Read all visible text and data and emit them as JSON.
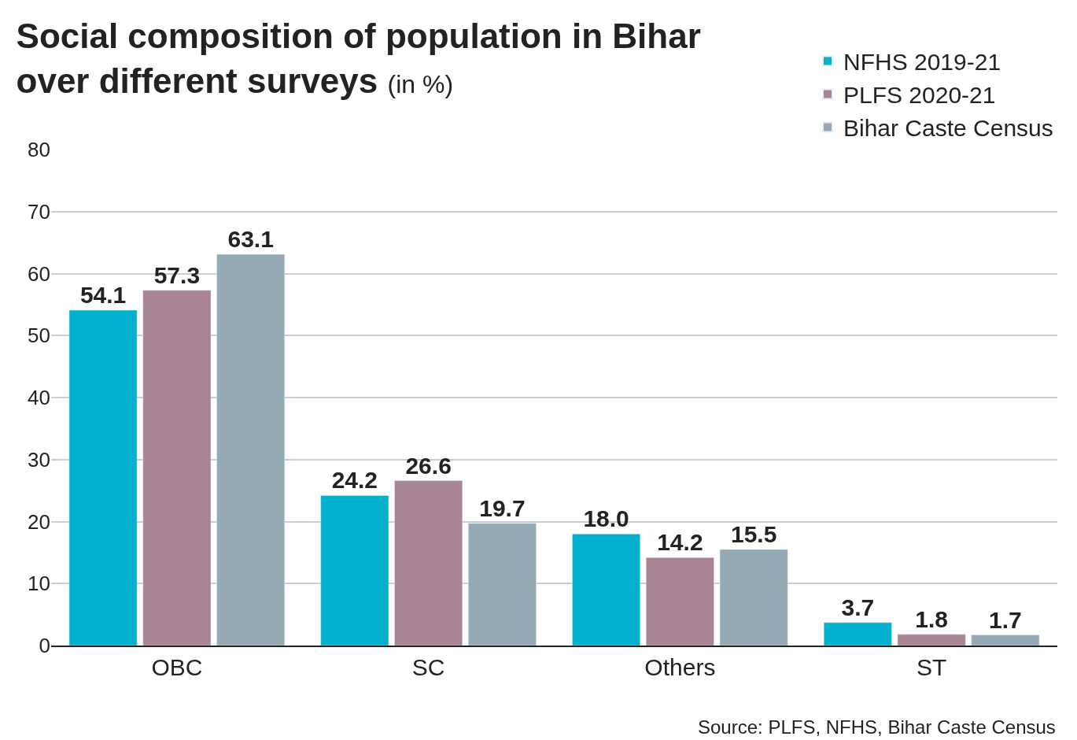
{
  "chart_data": {
    "type": "bar",
    "title": "Social composition of population in Bihar over different surveys",
    "subtitle": "(in %)",
    "categories": [
      "OBC",
      "SC",
      "Others",
      "ST"
    ],
    "series": [
      {
        "name": "NFHS 2019-21",
        "color": "#00b0cc",
        "values": [
          54.1,
          24.2,
          18.0,
          3.7
        ],
        "value_labels": [
          "54.1",
          "24.2",
          "18.0",
          "3.7"
        ]
      },
      {
        "name": "PLFS 2020-21",
        "color": "#a88494",
        "values": [
          57.3,
          26.6,
          14.2,
          1.8
        ],
        "value_labels": [
          "57.3",
          "26.6",
          "14.2",
          "1.8"
        ]
      },
      {
        "name": "Bihar Caste Census",
        "color": "#96aab6",
        "values": [
          63.1,
          19.7,
          15.5,
          1.7
        ],
        "value_labels": [
          "63.1",
          "19.7",
          "15.5",
          "1.7"
        ]
      }
    ],
    "ylim": [
      0,
      80
    ],
    "yticks": [
      0,
      10,
      20,
      30,
      40,
      50,
      60,
      70,
      80
    ],
    "grid": "y",
    "legend": "top right",
    "annotations": [
      "Source: PLFS, NFHS, Bihar Caste Census"
    ]
  }
}
